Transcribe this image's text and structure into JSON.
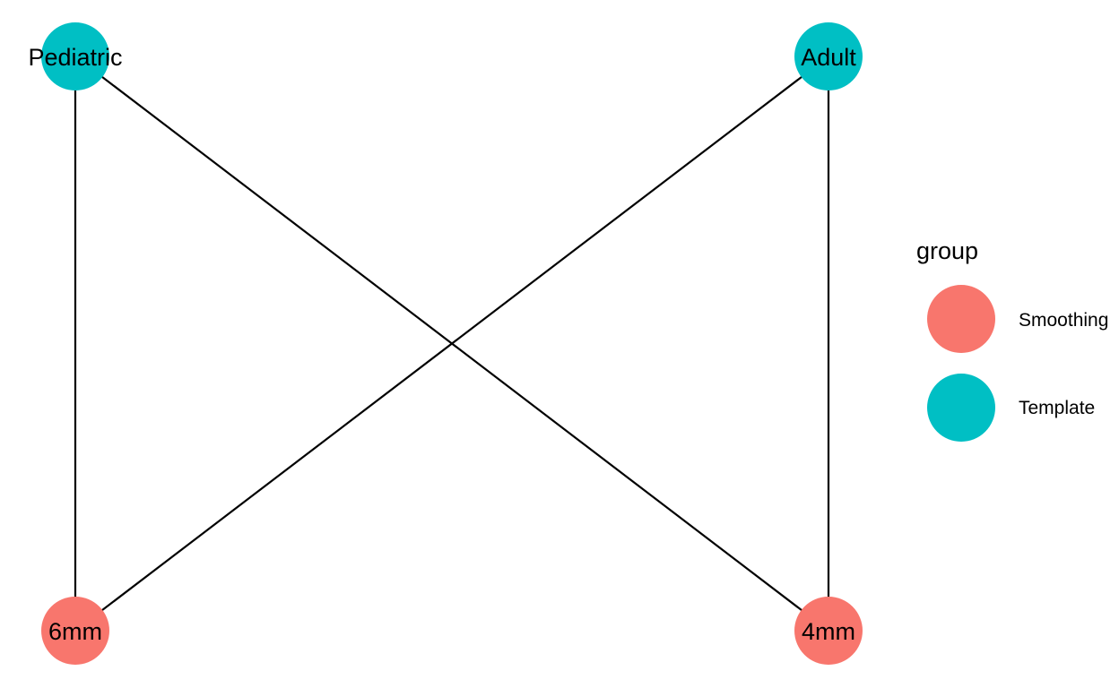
{
  "colors": {
    "Smoothing": "#F8766D",
    "Template": "#00BFC4"
  },
  "nodes": [
    {
      "id": "pediatric",
      "label": "Pediatric",
      "group": "Template"
    },
    {
      "id": "adult",
      "label": "Adult",
      "group": "Template"
    },
    {
      "id": "6mm",
      "label": "6mm",
      "group": "Smoothing"
    },
    {
      "id": "4mm",
      "label": "4mm",
      "group": "Smoothing"
    }
  ],
  "edges": [
    {
      "from": "pediatric",
      "to": "6mm"
    },
    {
      "from": "pediatric",
      "to": "4mm"
    },
    {
      "from": "adult",
      "to": "6mm"
    },
    {
      "from": "adult",
      "to": "4mm"
    }
  ],
  "legend": {
    "title": "group",
    "items": [
      {
        "label": "Smoothing"
      },
      {
        "label": "Template"
      }
    ]
  }
}
